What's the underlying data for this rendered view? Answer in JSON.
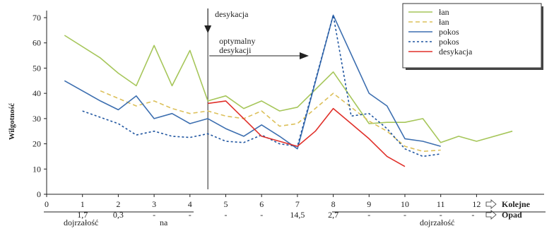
{
  "chart_data": {
    "type": "line",
    "ylabel": "Wilgotność",
    "ylim": [
      0,
      70
    ],
    "yticks": [
      0,
      10,
      20,
      30,
      40,
      50,
      60,
      70
    ],
    "xlim": [
      0,
      14
    ],
    "xticks": [
      "0",
      "1",
      "2",
      "3",
      "4",
      "5",
      "6",
      "7",
      "8",
      "9",
      "10",
      "11",
      "12"
    ],
    "grid": false,
    "legend_position": "top-right",
    "series": [
      {
        "name": "łan",
        "color": "#a6c65a",
        "dash": "solid",
        "points": [
          [
            0.5,
            63
          ],
          [
            1.5,
            54
          ],
          [
            2,
            48
          ],
          [
            2.5,
            43
          ],
          [
            3,
            59
          ],
          [
            3.5,
            43
          ],
          [
            4,
            57
          ],
          [
            4.5,
            37
          ],
          [
            5,
            39
          ],
          [
            5.5,
            34
          ],
          [
            6,
            37
          ],
          [
            6.5,
            33
          ],
          [
            7,
            34.5
          ],
          [
            8,
            48.5
          ],
          [
            9,
            28
          ],
          [
            9.5,
            28.5
          ],
          [
            10,
            28.5
          ],
          [
            10.5,
            30
          ],
          [
            11,
            20.5
          ],
          [
            11.5,
            23
          ],
          [
            12,
            21
          ],
          [
            13,
            25
          ]
        ]
      },
      {
        "name": "łan",
        "color": "#dcc05a",
        "dash": "dashed",
        "points": [
          [
            1.5,
            41
          ],
          [
            2,
            38
          ],
          [
            2.5,
            35
          ],
          [
            3,
            37
          ],
          [
            3.5,
            34
          ],
          [
            4,
            32
          ],
          [
            4.5,
            33
          ],
          [
            5,
            31
          ],
          [
            5.5,
            30
          ],
          [
            6,
            33
          ],
          [
            6.5,
            27
          ],
          [
            7,
            28
          ],
          [
            8,
            40
          ],
          [
            9,
            29
          ],
          [
            9.5,
            25
          ],
          [
            10,
            19
          ],
          [
            10.5,
            17
          ],
          [
            11,
            17.5
          ]
        ]
      },
      {
        "name": "pokos",
        "color": "#3d6fb0",
        "dash": "solid",
        "points": [
          [
            0.5,
            45
          ],
          [
            1.5,
            37
          ],
          [
            2,
            33.5
          ],
          [
            2.5,
            39
          ],
          [
            3,
            30
          ],
          [
            3.5,
            32
          ],
          [
            4,
            28
          ],
          [
            4.5,
            30
          ],
          [
            5,
            26
          ],
          [
            5.5,
            23
          ],
          [
            6,
            27.5
          ],
          [
            6.5,
            23
          ],
          [
            7,
            18
          ],
          [
            8,
            71
          ],
          [
            9,
            40
          ],
          [
            9.5,
            35
          ],
          [
            10,
            22
          ],
          [
            10.5,
            21
          ],
          [
            11,
            19
          ]
        ]
      },
      {
        "name": "pokos",
        "color": "#1f55a0",
        "dash": "dotted",
        "points": [
          [
            1,
            33
          ],
          [
            2,
            28
          ],
          [
            2.5,
            23.5
          ],
          [
            3,
            25
          ],
          [
            3.5,
            23
          ],
          [
            4,
            22.5
          ],
          [
            4.5,
            24
          ],
          [
            5,
            21
          ],
          [
            5.5,
            20.5
          ],
          [
            6,
            23.5
          ],
          [
            6.5,
            20
          ],
          [
            7,
            19
          ],
          [
            8,
            71
          ],
          [
            8.5,
            31
          ],
          [
            9,
            32
          ],
          [
            9.5,
            26
          ],
          [
            10,
            18
          ],
          [
            10.5,
            15
          ],
          [
            11,
            16
          ]
        ]
      },
      {
        "name": "desykacja",
        "color": "#e0302a",
        "dash": "solid",
        "points": [
          [
            4.5,
            36
          ],
          [
            5,
            37
          ],
          [
            5.5,
            30
          ],
          [
            6,
            23
          ],
          [
            6.5,
            21
          ],
          [
            7,
            19
          ],
          [
            7.5,
            25
          ],
          [
            8,
            34
          ],
          [
            8.5,
            28
          ],
          [
            9,
            22
          ],
          [
            9.5,
            15
          ],
          [
            10,
            11
          ]
        ]
      }
    ],
    "annotations": {
      "desiccation_label": "desykacja",
      "desiccation_x": 4.5,
      "optimal_label_1": "optymalny",
      "optimal_label_2": "desykacji"
    },
    "bottom_rows": {
      "kolejne_label": "Kolejne",
      "opad_label": "Opad",
      "opad_values": [
        {
          "x": 1,
          "label": "1,7"
        },
        {
          "x": 2,
          "label": "0,3"
        },
        {
          "x": 3,
          "label": "-"
        },
        {
          "x": 4,
          "label": "-"
        },
        {
          "x": 5,
          "label": "-"
        },
        {
          "x": 6,
          "label": "-"
        },
        {
          "x": 7,
          "label": "14,5"
        },
        {
          "x": 8,
          "label": "2,7"
        },
        {
          "x": 9,
          "label": "-"
        },
        {
          "x": 10,
          "label": "-"
        },
        {
          "x": 11,
          "label": "-"
        },
        {
          "x": 11.9,
          "label": "-"
        }
      ],
      "maturity_word": "dojrzałość",
      "maturity_left_2": "na",
      "maturity_right": "dojrzałość"
    }
  }
}
